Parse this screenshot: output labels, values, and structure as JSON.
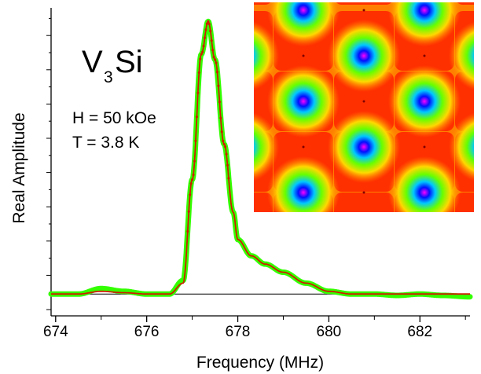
{
  "chart_data": {
    "type": "line",
    "xlabel": "Frequency (MHz)",
    "ylabel": "Real Amplitude",
    "xlim": [
      673.9,
      683.1
    ],
    "ylim": [
      -0.08,
      1.05
    ],
    "xticks": [
      674,
      676,
      678,
      680,
      682
    ],
    "xtick_labels": [
      "674",
      "676",
      "678",
      "680",
      "682"
    ],
    "grid": false,
    "baseline": 0,
    "annotations": {
      "compound_main": "V",
      "compound_sub": "3",
      "compound_end": "Si",
      "field": "H = 50 kOe",
      "temperature": "T = 3.8 K"
    },
    "series": [
      {
        "style": "data",
        "color": "#33ff00",
        "x": [
          673.9,
          674.5,
          675.0,
          675.5,
          676.0,
          676.5,
          676.8,
          677.0,
          677.2,
          677.35,
          677.5,
          677.7,
          677.9,
          678.0,
          678.3,
          678.6,
          679.0,
          679.5,
          680.0,
          680.5,
          681.0,
          681.5,
          682.0,
          682.5,
          683.1
        ],
        "y": [
          0.0,
          0.0,
          0.02,
          0.01,
          0.0,
          0.0,
          0.05,
          0.42,
          0.88,
          1.0,
          0.86,
          0.55,
          0.3,
          0.2,
          0.14,
          0.11,
          0.08,
          0.04,
          0.01,
          0.0,
          0.0,
          -0.005,
          0.0,
          -0.005,
          -0.01
        ]
      },
      {
        "style": "fit",
        "color": "#cc1f00",
        "x": [
          673.9,
          674.5,
          675.0,
          675.5,
          676.0,
          676.5,
          676.8,
          677.0,
          677.2,
          677.35,
          677.5,
          677.7,
          677.9,
          678.0,
          678.3,
          678.6,
          679.0,
          679.5,
          680.0,
          680.5,
          681.0,
          681.5,
          682.0,
          682.5,
          683.1
        ],
        "y": [
          0.0,
          0.0,
          0.01,
          0.005,
          0.0,
          0.0,
          0.04,
          0.42,
          0.88,
          1.0,
          0.86,
          0.55,
          0.3,
          0.2,
          0.14,
          0.11,
          0.08,
          0.04,
          0.01,
          0.0,
          0.0,
          0.0,
          0.0,
          0.0,
          0.0
        ]
      }
    ],
    "inset": {
      "type": "heatmap",
      "colors": [
        "#ff3000",
        "#ff8000",
        "#ffd800",
        "#66ff00",
        "#00c8ff",
        "#0010ff",
        "#ff00ff"
      ]
    }
  }
}
